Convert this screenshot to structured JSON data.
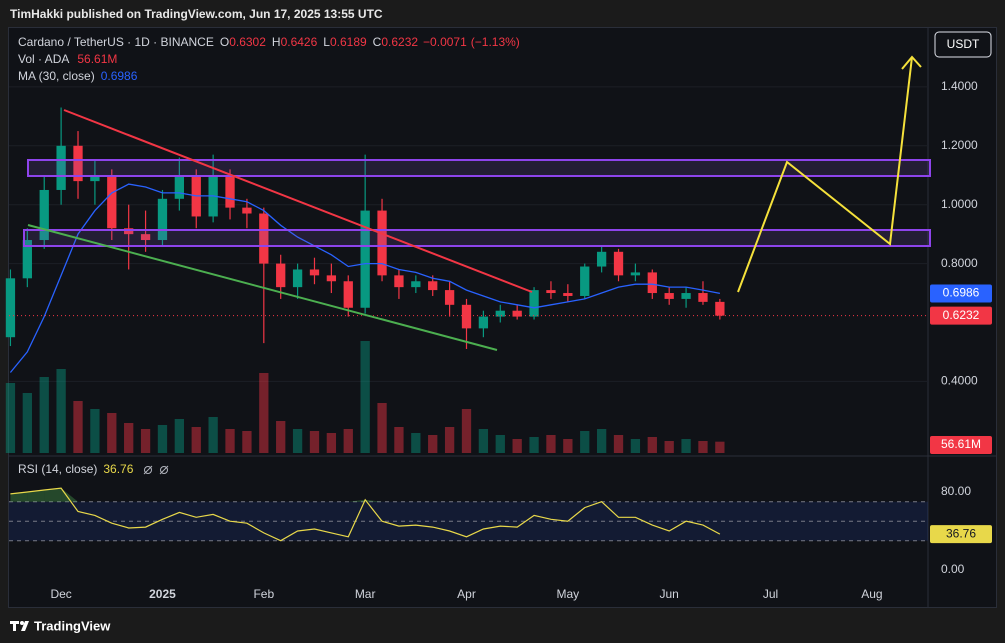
{
  "header": {
    "publisher": "TimHakki published on TradingView.com, Jun 17, 2025 13:55 UTC"
  },
  "footer": {
    "brand": "TradingView"
  },
  "currency_button": "USDT",
  "chart_data": [
    {
      "type": "candlestick",
      "title": "Cardano / TetherUS · 1D · BINANCE",
      "ohlc": [
        {
          "key": "O",
          "value": 0.6302
        },
        {
          "key": "H",
          "value": 0.6426
        },
        {
          "key": "L",
          "value": 0.6189
        },
        {
          "key": "C",
          "value": 0.6232
        }
      ],
      "change": {
        "value": -0.0071,
        "label": "−0.0071"
      },
      "change_pct": {
        "value": -1.13,
        "label": "(−1.13%)"
      },
      "up_color": "#089981",
      "down_color": "#f23645",
      "categories": [
        null,
        null,
        null,
        "Dec",
        null,
        null,
        null,
        null,
        null,
        "2025",
        null,
        null,
        null,
        null,
        null,
        "Feb",
        null,
        null,
        null,
        null,
        null,
        "Mar",
        null,
        null,
        null,
        null,
        null,
        "Apr",
        null,
        null,
        null,
        null,
        null,
        "May",
        null,
        null,
        null,
        null,
        null,
        "Jun",
        null,
        null,
        null,
        null,
        null,
        "Jul",
        null,
        null,
        null,
        null,
        null,
        "Aug",
        null,
        null,
        null
      ],
      "open": [
        0.55,
        0.75,
        0.88,
        1.05,
        1.2,
        1.08,
        1.1,
        0.92,
        0.9,
        0.88,
        1.02,
        1.1,
        0.96,
        1.1,
        0.99,
        0.97,
        0.8,
        0.72,
        0.78,
        0.76,
        0.74,
        0.65,
        0.98,
        0.76,
        0.72,
        0.74,
        0.71,
        0.66,
        0.58,
        0.62,
        0.64,
        0.62,
        0.71,
        0.7,
        0.69,
        0.79,
        0.84,
        0.76,
        0.77,
        0.7,
        0.68,
        0.7,
        0.67,
        null,
        null,
        null,
        null,
        null,
        null,
        null,
        null,
        null,
        null,
        null,
        null
      ],
      "high": [
        0.78,
        0.92,
        1.1,
        1.33,
        1.25,
        1.15,
        1.12,
        1.0,
        0.98,
        1.05,
        1.16,
        1.12,
        1.17,
        1.12,
        1.02,
        0.99,
        0.83,
        0.8,
        0.82,
        0.8,
        0.76,
        1.17,
        1.02,
        0.78,
        0.76,
        0.76,
        0.74,
        0.68,
        0.64,
        0.66,
        0.66,
        0.72,
        0.74,
        0.73,
        0.8,
        0.86,
        0.85,
        0.8,
        0.78,
        0.72,
        0.72,
        0.74,
        0.68,
        null,
        null,
        null,
        null,
        null,
        null,
        null,
        null,
        null,
        null,
        null,
        null
      ],
      "low": [
        0.52,
        0.72,
        0.85,
        1.0,
        1.02,
        1.0,
        0.88,
        0.78,
        0.84,
        0.86,
        0.98,
        0.92,
        0.94,
        0.95,
        0.92,
        0.53,
        0.68,
        0.68,
        0.73,
        0.7,
        0.62,
        0.63,
        0.74,
        0.68,
        0.7,
        0.69,
        0.62,
        0.51,
        0.55,
        0.6,
        0.61,
        0.61,
        0.68,
        0.67,
        0.68,
        0.77,
        0.74,
        0.74,
        0.68,
        0.66,
        0.65,
        0.66,
        0.61,
        null,
        null,
        null,
        null,
        null,
        null,
        null,
        null,
        null,
        null,
        null,
        null
      ],
      "close": [
        0.75,
        0.88,
        1.05,
        1.2,
        1.08,
        1.1,
        0.92,
        0.9,
        0.88,
        1.02,
        1.1,
        0.96,
        1.1,
        0.99,
        0.97,
        0.8,
        0.72,
        0.78,
        0.76,
        0.74,
        0.65,
        0.98,
        0.76,
        0.72,
        0.74,
        0.71,
        0.66,
        0.58,
        0.62,
        0.64,
        0.62,
        0.71,
        0.7,
        0.69,
        0.79,
        0.84,
        0.76,
        0.77,
        0.7,
        0.68,
        0.7,
        0.67,
        0.6232,
        null,
        null,
        null,
        null,
        null,
        null,
        null,
        null,
        null,
        null,
        null,
        null
      ],
      "ma": {
        "name": "MA (30, close)",
        "color": "#2962ff",
        "values": [
          0.43,
          0.5,
          0.62,
          0.76,
          0.9,
          0.98,
          1.04,
          1.07,
          1.06,
          1.04,
          1.04,
          1.03,
          1.03,
          1.02,
          1.01,
          0.98,
          0.93,
          0.89,
          0.86,
          0.83,
          0.79,
          0.8,
          0.8,
          0.78,
          0.77,
          0.75,
          0.74,
          0.71,
          0.69,
          0.67,
          0.66,
          0.65,
          0.66,
          0.67,
          0.68,
          0.7,
          0.72,
          0.73,
          0.73,
          0.72,
          0.72,
          0.71,
          0.6986,
          null,
          null,
          null,
          null,
          null,
          null,
          null,
          null,
          null,
          null,
          null,
          null
        ]
      },
      "volume": {
        "name": "Vol · ADA",
        "ylim": [
          0,
          600
        ],
        "last_label": "56.61M",
        "values": [
          350,
          300,
          380,
          420,
          260,
          220,
          200,
          150,
          120,
          140,
          170,
          130,
          180,
          120,
          110,
          400,
          160,
          120,
          110,
          100,
          120,
          560,
          250,
          130,
          100,
          90,
          130,
          220,
          120,
          90,
          70,
          80,
          90,
          70,
          110,
          120,
          90,
          70,
          80,
          60,
          70,
          60,
          56.61,
          null,
          null,
          null,
          null,
          null,
          null,
          null,
          null,
          null,
          null,
          null,
          null
        ]
      },
      "ylim": [
        0.15,
        1.6
      ],
      "yticks": [
        {
          "value": 0.4,
          "label": "0.4000"
        },
        {
          "value": 0.8,
          "label": "0.8000"
        },
        {
          "value": 1.0,
          "label": "1.0000"
        },
        {
          "value": 1.2,
          "label": "1.2000"
        },
        {
          "value": 1.4,
          "label": "1.4000"
        }
      ],
      "grid": true
    },
    {
      "type": "line",
      "title": "RSI (14, close)",
      "color": "#e8d84a",
      "values": [
        78,
        80,
        82,
        84,
        60,
        56,
        48,
        43,
        44,
        52,
        59,
        54,
        57,
        50,
        48,
        38,
        30,
        40,
        42,
        38,
        34,
        72,
        50,
        45,
        46,
        44,
        40,
        34,
        42,
        45,
        44,
        56,
        52,
        50,
        64,
        70,
        54,
        54,
        46,
        40,
        50,
        46,
        36.76,
        null,
        null,
        null,
        null,
        null,
        null,
        null,
        null,
        null,
        null,
        null,
        null
      ],
      "levels": [
        70,
        50,
        30
      ],
      "ylim": [
        -22.6,
        112.8
      ],
      "yticks": [
        {
          "value": 80,
          "label": "80.00"
        },
        {
          "value": 0,
          "label": "0.00"
        }
      ]
    }
  ]
}
